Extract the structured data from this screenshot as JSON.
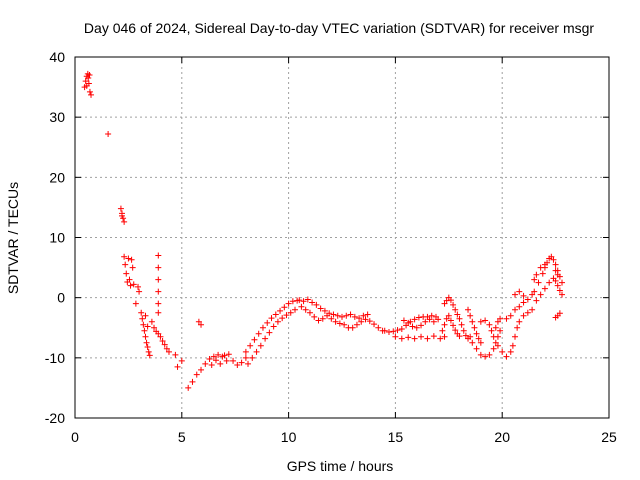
{
  "chart_data": {
    "type": "scatter",
    "title": "Day 046 of 2024, Sidereal Day-to-day VTEC variation (SDTVAR) for receiver msgr",
    "xlabel": "GPS time / hours",
    "ylabel": "SDTVAR / TECUs",
    "xlim": [
      0,
      25
    ],
    "ylim": [
      -20,
      40
    ],
    "xticks": [
      0,
      5,
      10,
      15,
      20,
      25
    ],
    "yticks": [
      -20,
      -10,
      0,
      10,
      20,
      30,
      40
    ],
    "grid": true,
    "marker": "+",
    "color": "#ff0000",
    "series": [
      {
        "name": "SDTVAR",
        "points": [
          [
            0.45,
            35.0
          ],
          [
            0.5,
            36.0
          ],
          [
            0.55,
            36.8
          ],
          [
            0.6,
            37.2
          ],
          [
            0.62,
            36.5
          ],
          [
            0.65,
            35.6
          ],
          [
            0.68,
            37.0
          ],
          [
            0.7,
            34.2
          ],
          [
            0.75,
            33.7
          ],
          [
            0.55,
            35.2
          ],
          [
            1.55,
            27.2
          ],
          [
            2.15,
            14.8
          ],
          [
            2.2,
            14.0
          ],
          [
            2.25,
            13.2
          ],
          [
            2.3,
            12.6
          ],
          [
            2.2,
            13.6
          ],
          [
            2.3,
            6.8
          ],
          [
            2.35,
            5.5
          ],
          [
            2.4,
            4.0
          ],
          [
            2.45,
            2.6
          ],
          [
            2.5,
            6.5
          ],
          [
            2.55,
            3.0
          ],
          [
            2.6,
            2.0
          ],
          [
            2.65,
            6.3
          ],
          [
            2.7,
            5.0
          ],
          [
            2.75,
            2.2
          ],
          [
            2.85,
            -1.0
          ],
          [
            2.95,
            1.8
          ],
          [
            3.0,
            1.0
          ],
          [
            3.1,
            -2.5
          ],
          [
            3.15,
            -3.5
          ],
          [
            3.2,
            -4.5
          ],
          [
            3.25,
            -5.5
          ],
          [
            3.3,
            -6.5
          ],
          [
            3.35,
            -7.5
          ],
          [
            3.4,
            -8.2
          ],
          [
            3.45,
            -9.0
          ],
          [
            3.5,
            -9.6
          ],
          [
            3.3,
            -3.0
          ],
          [
            3.4,
            -4.8
          ],
          [
            3.6,
            -4.0
          ],
          [
            3.7,
            -5.0
          ],
          [
            3.8,
            -5.6
          ],
          [
            3.9,
            -6.0
          ],
          [
            4.0,
            -6.5
          ],
          [
            4.1,
            -7.2
          ],
          [
            4.2,
            -7.8
          ],
          [
            4.3,
            -8.5
          ],
          [
            4.4,
            -9.0
          ],
          [
            3.9,
            7.0
          ],
          [
            3.9,
            5.0
          ],
          [
            3.9,
            3.0
          ],
          [
            3.9,
            1.0
          ],
          [
            3.9,
            -1.0
          ],
          [
            3.9,
            -2.5
          ],
          [
            4.8,
            -11.5
          ],
          [
            4.7,
            -9.5
          ],
          [
            5.0,
            -10.5
          ],
          [
            5.3,
            -15.0
          ],
          [
            5.5,
            -14.0
          ],
          [
            5.7,
            -12.8
          ],
          [
            5.9,
            -12.0
          ],
          [
            6.1,
            -11.0
          ],
          [
            6.3,
            -10.2
          ],
          [
            6.5,
            -9.8
          ],
          [
            6.7,
            -9.5
          ],
          [
            6.9,
            -9.8
          ],
          [
            7.1,
            -10.5
          ],
          [
            5.8,
            -4.0
          ],
          [
            5.9,
            -4.5
          ],
          [
            6.4,
            -11.2
          ],
          [
            6.6,
            -10.4
          ],
          [
            6.8,
            -11.0
          ],
          [
            7.0,
            -9.6
          ],
          [
            7.2,
            -9.4
          ],
          [
            7.4,
            -10.5
          ],
          [
            7.6,
            -11.2
          ],
          [
            7.8,
            -10.8
          ],
          [
            8.0,
            -10.0
          ],
          [
            8.0,
            -9.0
          ],
          [
            8.2,
            -8.0
          ],
          [
            8.4,
            -7.0
          ],
          [
            8.6,
            -6.0
          ],
          [
            8.8,
            -5.0
          ],
          [
            9.0,
            -4.2
          ],
          [
            9.2,
            -3.4
          ],
          [
            9.4,
            -2.8
          ],
          [
            9.6,
            -2.2
          ],
          [
            9.8,
            -1.6
          ],
          [
            10.0,
            -1.0
          ],
          [
            10.2,
            -0.6
          ],
          [
            10.4,
            -0.5
          ],
          [
            8.1,
            -11.0
          ],
          [
            8.3,
            -10.0
          ],
          [
            8.5,
            -9.0
          ],
          [
            8.7,
            -8.0
          ],
          [
            8.9,
            -6.8
          ],
          [
            9.1,
            -5.8
          ],
          [
            9.3,
            -4.8
          ],
          [
            9.5,
            -4.0
          ],
          [
            9.7,
            -3.4
          ],
          [
            9.9,
            -2.9
          ],
          [
            10.1,
            -2.5
          ],
          [
            10.3,
            -2.0
          ],
          [
            10.5,
            -0.4
          ],
          [
            10.7,
            -0.6
          ],
          [
            10.9,
            -0.3
          ],
          [
            11.1,
            -0.8
          ],
          [
            11.3,
            -1.2
          ],
          [
            11.5,
            -1.8
          ],
          [
            11.7,
            -2.2
          ],
          [
            11.9,
            -2.6
          ],
          [
            12.1,
            -2.8
          ],
          [
            12.3,
            -3.0
          ],
          [
            12.5,
            -3.2
          ],
          [
            10.6,
            -1.5
          ],
          [
            10.8,
            -2.0
          ],
          [
            11.0,
            -2.5
          ],
          [
            11.2,
            -3.2
          ],
          [
            11.4,
            -3.8
          ],
          [
            11.6,
            -3.5
          ],
          [
            11.8,
            -3.0
          ],
          [
            12.0,
            -3.5
          ],
          [
            12.2,
            -4.0
          ],
          [
            12.4,
            -4.3
          ],
          [
            12.6,
            -4.5
          ],
          [
            12.8,
            -5.0
          ],
          [
            13.0,
            -5.0
          ],
          [
            13.2,
            -4.5
          ],
          [
            13.4,
            -4.0
          ],
          [
            13.6,
            -3.6
          ],
          [
            13.8,
            -3.9
          ],
          [
            14.0,
            -4.4
          ],
          [
            14.2,
            -5.0
          ],
          [
            14.4,
            -5.5
          ],
          [
            12.7,
            -3.0
          ],
          [
            12.9,
            -2.8
          ],
          [
            13.1,
            -3.2
          ],
          [
            13.3,
            -3.4
          ],
          [
            13.5,
            -3.0
          ],
          [
            13.7,
            -2.8
          ],
          [
            14.5,
            -5.5
          ],
          [
            14.7,
            -5.7
          ],
          [
            14.9,
            -5.6
          ],
          [
            15.1,
            -5.4
          ],
          [
            15.3,
            -5.2
          ],
          [
            15.5,
            -4.6
          ],
          [
            15.7,
            -4.0
          ],
          [
            15.9,
            -3.6
          ],
          [
            16.1,
            -3.3
          ],
          [
            16.3,
            -3.2
          ],
          [
            16.5,
            -3.2
          ],
          [
            16.7,
            -3.0
          ],
          [
            16.9,
            -3.2
          ],
          [
            15.0,
            -6.5
          ],
          [
            15.3,
            -6.8
          ],
          [
            15.6,
            -6.6
          ],
          [
            15.9,
            -6.8
          ],
          [
            16.2,
            -6.5
          ],
          [
            16.5,
            -6.8
          ],
          [
            16.8,
            -6.4
          ],
          [
            17.1,
            -6.8
          ],
          [
            17.3,
            -6.5
          ],
          [
            15.4,
            -3.8
          ],
          [
            15.6,
            -4.2
          ],
          [
            15.8,
            -4.8
          ],
          [
            16.0,
            -5.0
          ],
          [
            16.2,
            -4.6
          ],
          [
            16.4,
            -4.0
          ],
          [
            16.6,
            -3.6
          ],
          [
            16.8,
            -4.0
          ],
          [
            17.0,
            -3.6
          ],
          [
            17.3,
            -1.0
          ],
          [
            17.4,
            -0.5
          ],
          [
            17.5,
            0.0
          ],
          [
            17.6,
            -0.4
          ],
          [
            17.7,
            -1.2
          ],
          [
            17.8,
            -2.0
          ],
          [
            17.9,
            -2.8
          ],
          [
            18.0,
            -3.5
          ],
          [
            18.1,
            -4.5
          ],
          [
            18.2,
            -5.5
          ],
          [
            18.3,
            -6.3
          ],
          [
            18.4,
            -6.8
          ],
          [
            18.5,
            -6.5
          ],
          [
            17.2,
            -5.5
          ],
          [
            17.3,
            -4.5
          ],
          [
            17.4,
            -3.5
          ],
          [
            17.5,
            -3.0
          ],
          [
            17.6,
            -3.8
          ],
          [
            17.7,
            -4.6
          ],
          [
            17.8,
            -5.4
          ],
          [
            17.9,
            -6.0
          ],
          [
            18.0,
            -6.4
          ],
          [
            18.6,
            -7.5
          ],
          [
            18.8,
            -8.5
          ],
          [
            19.0,
            -9.5
          ],
          [
            19.2,
            -9.8
          ],
          [
            19.4,
            -9.5
          ],
          [
            19.6,
            -8.5
          ],
          [
            19.7,
            -7.5
          ],
          [
            19.8,
            -6.5
          ],
          [
            19.9,
            -5.5
          ],
          [
            18.4,
            -2.0
          ],
          [
            18.5,
            -3.0
          ],
          [
            18.6,
            -4.0
          ],
          [
            18.7,
            -5.0
          ],
          [
            18.8,
            -6.0
          ],
          [
            18.9,
            -6.8
          ],
          [
            19.0,
            -7.5
          ],
          [
            19.0,
            -4.0
          ],
          [
            19.2,
            -3.8
          ],
          [
            19.4,
            -4.5
          ],
          [
            19.5,
            -5.5
          ],
          [
            19.6,
            -6.5
          ],
          [
            19.7,
            -5.0
          ],
          [
            19.8,
            -4.0
          ],
          [
            19.9,
            -3.5
          ],
          [
            19.8,
            -8.0
          ],
          [
            20.0,
            -9.0
          ],
          [
            20.2,
            -9.8
          ],
          [
            20.4,
            -9.0
          ],
          [
            20.5,
            -8.0
          ],
          [
            20.6,
            -6.5
          ],
          [
            20.7,
            -5.0
          ],
          [
            20.8,
            -4.0
          ],
          [
            21.0,
            -3.0
          ],
          [
            21.2,
            -2.5
          ],
          [
            21.4,
            -2.0
          ],
          [
            20.2,
            -3.5
          ],
          [
            20.4,
            -3.0
          ],
          [
            20.6,
            -2.0
          ],
          [
            20.8,
            -1.5
          ],
          [
            21.0,
            -0.8
          ],
          [
            21.2,
            -0.3
          ],
          [
            21.4,
            0.5
          ],
          [
            20.6,
            0.5
          ],
          [
            20.8,
            1.0
          ],
          [
            21.0,
            0.3
          ],
          [
            21.5,
            1.0
          ],
          [
            21.7,
            2.5
          ],
          [
            21.9,
            4.0
          ],
          [
            22.0,
            5.0
          ],
          [
            22.1,
            5.8
          ],
          [
            22.2,
            6.5
          ],
          [
            22.3,
            6.8
          ],
          [
            22.4,
            6.3
          ],
          [
            22.5,
            5.5
          ],
          [
            22.6,
            4.5
          ],
          [
            22.7,
            3.5
          ],
          [
            22.8,
            2.5
          ],
          [
            21.6,
            -0.5
          ],
          [
            21.8,
            0.5
          ],
          [
            22.0,
            1.5
          ],
          [
            22.2,
            2.5
          ],
          [
            22.4,
            3.2
          ],
          [
            22.5,
            2.8
          ],
          [
            22.6,
            2.0
          ],
          [
            22.7,
            1.2
          ],
          [
            22.8,
            0.5
          ],
          [
            21.5,
            3.0
          ],
          [
            21.6,
            3.8
          ],
          [
            21.8,
            5.0
          ],
          [
            22.0,
            5.5
          ],
          [
            22.5,
            4.5
          ],
          [
            22.6,
            3.8
          ],
          [
            22.6,
            -3.0
          ],
          [
            22.7,
            -2.6
          ],
          [
            22.5,
            -3.3
          ]
        ]
      }
    ]
  }
}
